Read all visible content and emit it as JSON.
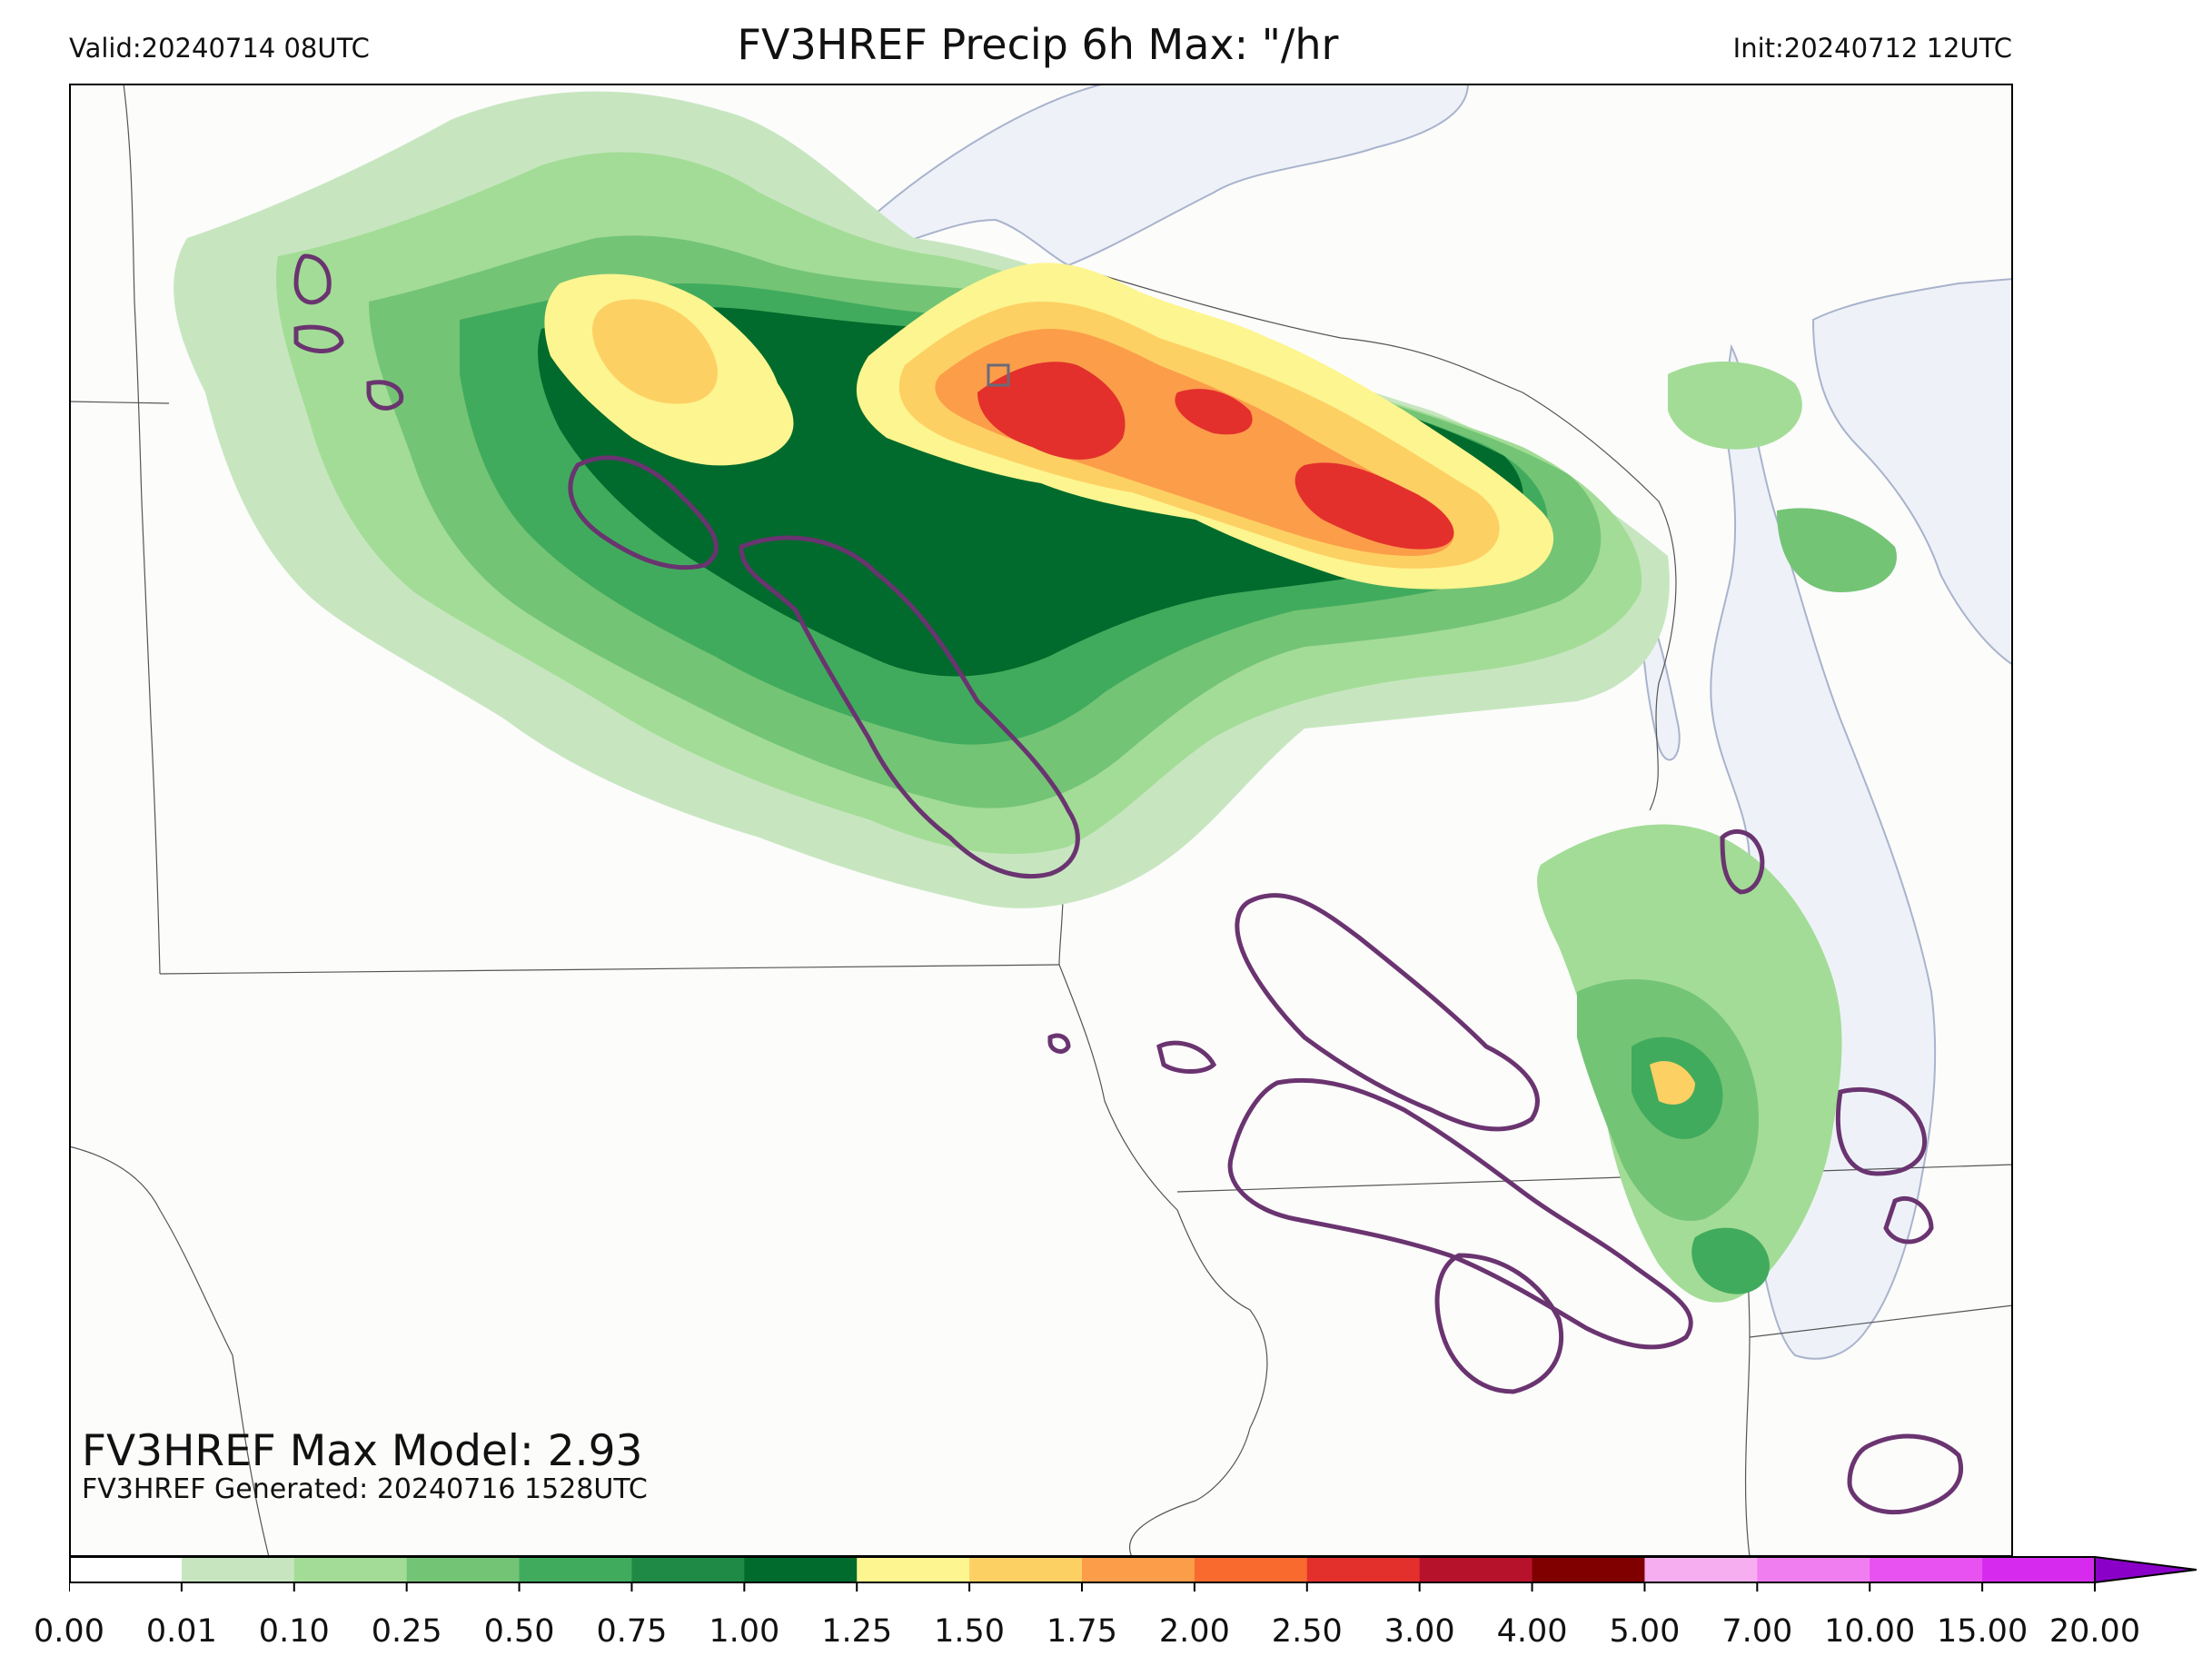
{
  "header": {
    "valid": "Valid:20240714 08UTC",
    "title": "FV3HREF Precip 6h Max: \"/hr",
    "init": "Init:20240712 12UTC"
  },
  "footer": {
    "max_model": "FV3HREF Max Model: 2.93",
    "generated": "FV3HREF Generated: 20240716 1528UTC"
  },
  "colorbar": {
    "ticks": [
      "0.00",
      "0.01",
      "0.10",
      "0.25",
      "0.50",
      "0.75",
      "1.00",
      "1.25",
      "1.50",
      "1.75",
      "2.00",
      "2.50",
      "3.00",
      "4.00",
      "5.00",
      "7.00",
      "10.00",
      "15.00",
      "20.00"
    ],
    "colors": [
      "#ffffff",
      "#c7e6c0",
      "#a3dc96",
      "#74c476",
      "#41ab5d",
      "#1f8a45",
      "#006b2c",
      "#fdf58f",
      "#fdd063",
      "#fc9d4a",
      "#f86a2e",
      "#e3302c",
      "#b7122c",
      "#800000",
      "#f7aef0",
      "#f17ef1",
      "#e752f1",
      "#d62bef",
      "#a311dd",
      "#8b00c9"
    ]
  },
  "map": {
    "water_color": "#eef2f8",
    "land_color": "#fcfcfb",
    "contour_color": "#6a3470"
  }
}
